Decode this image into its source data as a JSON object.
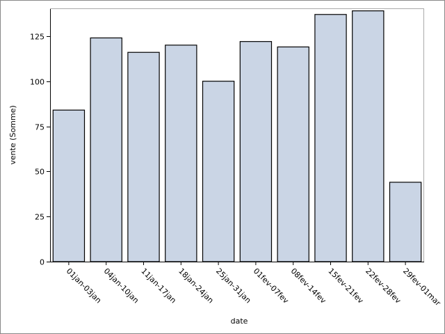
{
  "chart_data": {
    "type": "bar",
    "categories": [
      "01jan-03jan",
      "04jan-10jan",
      "11jan-17jan",
      "18jan-24jan",
      "25jan-31jan",
      "01fev-07fev",
      "08fev-14fev",
      "15fev-21fev",
      "22fev-28fev",
      "29fev-01mar"
    ],
    "values": [
      84,
      124,
      116,
      120,
      100,
      122,
      119,
      137,
      139,
      44
    ],
    "color": "#cad5e5",
    "x_label": "date",
    "y_label": "vente (Somme)",
    "ylim": [
      0,
      140
    ],
    "yticks": [
      0,
      25,
      50,
      75,
      100,
      125
    ],
    "grid": false
  }
}
